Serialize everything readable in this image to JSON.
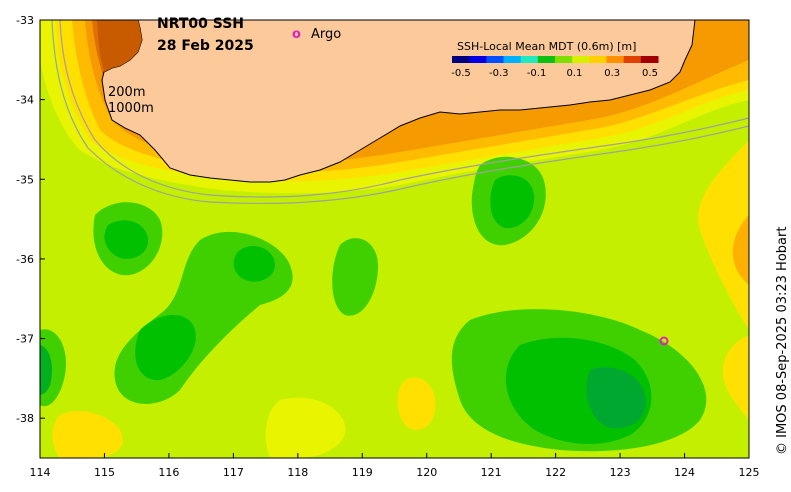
{
  "title": {
    "line1": "NRT00 SSH",
    "line2": "28 Feb 2025"
  },
  "legend": {
    "argo_symbol": "o",
    "argo_label": "Argo"
  },
  "colorbar": {
    "title": "SSH-Local Mean MDT (0.6m) [m]",
    "tick_labels": [
      "-0.5",
      "-0.3",
      "-0.1",
      "0.1",
      "0.3",
      "0.5"
    ],
    "colors": [
      "#00007f",
      "#0000e0",
      "#0050ff",
      "#00b0ff",
      "#20e8c0",
      "#10c010",
      "#7fe000",
      "#d8f000",
      "#ffd000",
      "#ff9000",
      "#e04000",
      "#a00000"
    ]
  },
  "contours": {
    "shallow": "200m",
    "deep": "1000m"
  },
  "axes": {
    "x_ticks": [
      "114",
      "115",
      "116",
      "117",
      "118",
      "119",
      "120",
      "121",
      "122",
      "123",
      "124",
      "125"
    ],
    "y_ticks": [
      "-33",
      "-34",
      "-35",
      "-36",
      "-37",
      "-38"
    ],
    "xlim": [
      114,
      125
    ],
    "ylim": [
      -38.5,
      -33
    ]
  },
  "credit": "© IMOS 08-Sep-2025 03:23 Hobart",
  "colors": {
    "land": "#fbc99a",
    "background_field": "#b8f000",
    "argo": "#e020c0"
  }
}
